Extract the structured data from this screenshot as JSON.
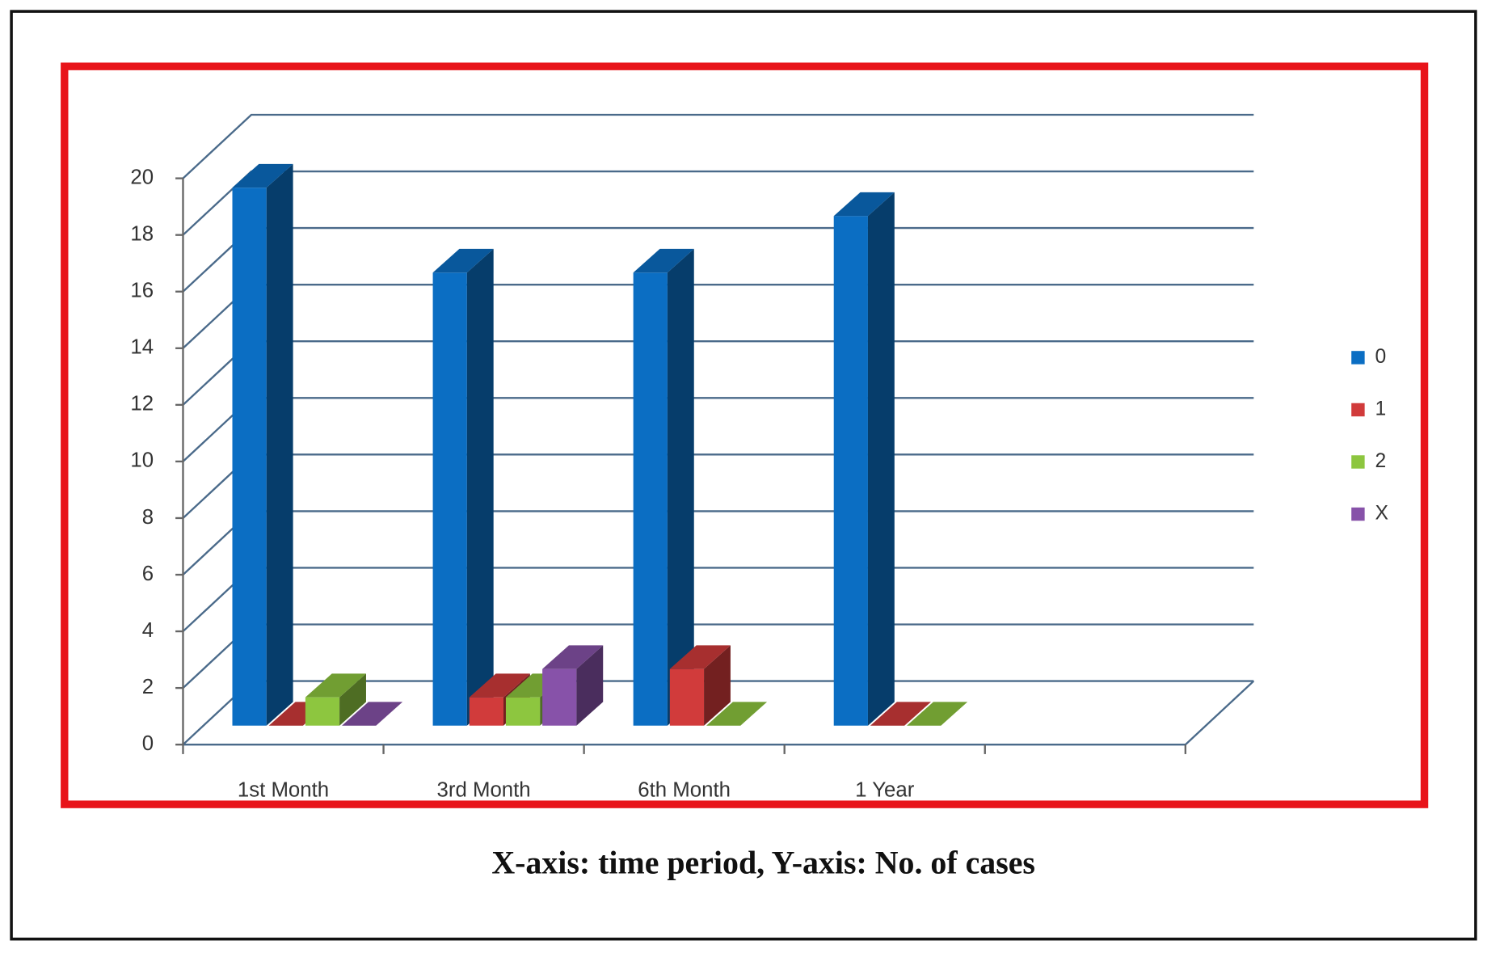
{
  "chart_data": {
    "type": "bar3d",
    "caption": "X-axis: time period, Y-axis: No. of cases",
    "categories": [
      "1st Month",
      "3rd Month",
      "6th Month",
      "1 Year",
      null
    ],
    "series": [
      {
        "name": "0",
        "color": "#0b6ec3",
        "values": [
          19,
          16,
          16,
          18,
          null
        ]
      },
      {
        "name": "1",
        "color": "#d13b3b",
        "values": [
          0,
          1,
          2,
          0,
          null
        ]
      },
      {
        "name": "2",
        "color": "#8dc63f",
        "values": [
          1,
          1,
          0,
          0,
          null
        ]
      },
      {
        "name": "X",
        "color": "#8752a9",
        "values": [
          0,
          2,
          null,
          null,
          null
        ]
      }
    ],
    "ylim": [
      0,
      20
    ],
    "yticks": [
      0,
      2,
      4,
      6,
      8,
      10,
      12,
      14,
      16,
      18,
      20
    ],
    "grid": true,
    "legend": "right"
  }
}
